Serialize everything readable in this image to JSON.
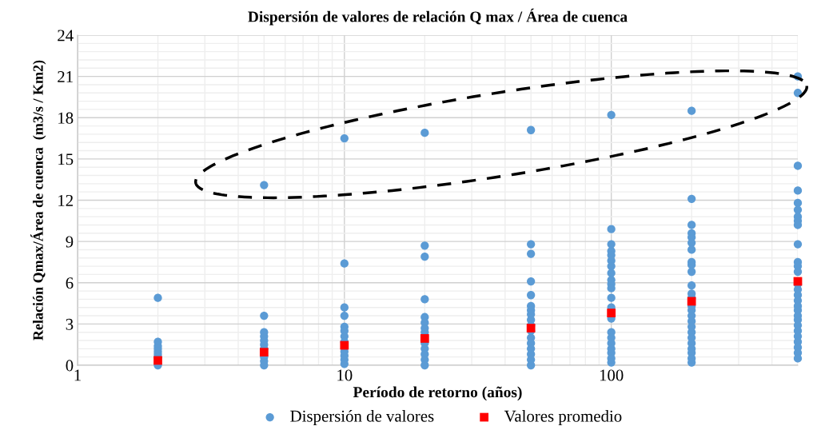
{
  "chart_data": {
    "type": "scatter",
    "title": "Dispersión de valores de relación Q max / Área de cuenca",
    "xlabel": "Período de retorno (años)",
    "ylabel": "Relación Qmax/Área de cuenca  (m3/s / Km2)",
    "log": "x",
    "xlim": [
      1,
      500
    ],
    "xticks": [
      1,
      10,
      100
    ],
    "ylim": [
      0,
      24
    ],
    "yticks": [
      0,
      3,
      6,
      9,
      12,
      15,
      18,
      21,
      24
    ],
    "grid": true,
    "legend": "bottom",
    "series": [
      {
        "name": "Dispersión de valores",
        "color": "#5b9bd5",
        "marker": "circle",
        "x": [
          2,
          2,
          2,
          2,
          2,
          2,
          2,
          2,
          5,
          5,
          5,
          5,
          5,
          5,
          5,
          5,
          5,
          5,
          10,
          10,
          10,
          10,
          10,
          10,
          10,
          10,
          10,
          10,
          10,
          10,
          20,
          20,
          20,
          20,
          20,
          20,
          20,
          20,
          20,
          20,
          20,
          20,
          20,
          50,
          50,
          50,
          50,
          50,
          50,
          50,
          50,
          50,
          50,
          50,
          50,
          50,
          50,
          50,
          50,
          50,
          100,
          100,
          100,
          100,
          100,
          100,
          100,
          100,
          100,
          100,
          100,
          100,
          100,
          100,
          100,
          100,
          100,
          100,
          100,
          100,
          100,
          200,
          200,
          200,
          200,
          200,
          200,
          200,
          200,
          200,
          200,
          200,
          200,
          200,
          200,
          200,
          200,
          200,
          200,
          200,
          200,
          200,
          200,
          200,
          200,
          200,
          500,
          500,
          500,
          500,
          500,
          500,
          500,
          500,
          500,
          500,
          500,
          500,
          500,
          500,
          500,
          500,
          500,
          500,
          500,
          500,
          500,
          500,
          500,
          500,
          500,
          500,
          500,
          500
        ],
        "values": [
          4.9,
          1.7,
          1.4,
          1.2,
          1.0,
          0.8,
          0.6,
          0.0,
          13.1,
          3.6,
          2.4,
          2.1,
          1.8,
          1.5,
          1.2,
          0.6,
          0.3,
          0.0,
          16.5,
          7.4,
          4.2,
          3.6,
          2.8,
          2.5,
          2.1,
          1.7,
          1.0,
          0.7,
          0.4,
          0.1,
          16.9,
          8.7,
          7.9,
          4.8,
          3.5,
          3.1,
          2.7,
          2.4,
          1.6,
          1.2,
          0.8,
          0.4,
          0.0,
          17.1,
          8.8,
          8.1,
          6.1,
          5.1,
          4.3,
          4.0,
          3.7,
          3.3,
          2.9,
          2.5,
          2.0,
          1.6,
          1.2,
          0.8,
          0.4,
          0.0,
          18.2,
          9.9,
          8.8,
          8.3,
          8.0,
          7.6,
          7.2,
          6.7,
          6.2,
          5.9,
          5.6,
          4.9,
          4.2,
          3.4,
          2.4,
          2.0,
          1.6,
          1.2,
          0.9,
          0.5,
          0.2,
          18.5,
          12.1,
          10.2,
          9.6,
          9.3,
          8.9,
          8.4,
          7.5,
          7.3,
          6.8,
          5.8,
          5.2,
          4.9,
          4.3,
          4.0,
          3.6,
          3.2,
          2.8,
          2.4,
          2.0,
          1.6,
          1.2,
          0.9,
          0.5,
          0.2,
          21.0,
          19.8,
          14.5,
          12.7,
          11.8,
          11.3,
          10.8,
          10.5,
          10.2,
          8.8,
          7.5,
          7.2,
          6.8,
          5.9,
          5.5,
          5.1,
          4.7,
          4.3,
          4.0,
          3.6,
          3.3,
          2.9,
          2.5,
          2.1,
          1.7,
          1.3,
          0.9,
          0.5
        ]
      },
      {
        "name": "Valores promedio",
        "color": "#ff0000",
        "marker": "square",
        "x": [
          2,
          5,
          10,
          20,
          50,
          100,
          200,
          500
        ],
        "values": [
          0.35,
          0.95,
          1.45,
          1.95,
          2.7,
          3.8,
          4.65,
          6.1
        ]
      }
    ]
  }
}
